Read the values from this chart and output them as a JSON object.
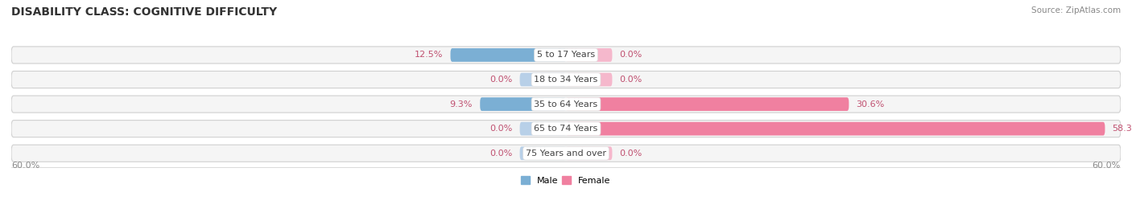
{
  "title": "DISABILITY CLASS: COGNITIVE DIFFICULTY",
  "source": "Source: ZipAtlas.com",
  "categories": [
    "5 to 17 Years",
    "18 to 34 Years",
    "35 to 64 Years",
    "65 to 74 Years",
    "75 Years and over"
  ],
  "male_values": [
    12.5,
    0.0,
    9.3,
    0.0,
    0.0
  ],
  "female_values": [
    0.0,
    0.0,
    30.6,
    58.3,
    0.0
  ],
  "max_val": 60.0,
  "male_color": "#7bafd4",
  "female_color": "#f080a0",
  "male_zero_color": "#b8d0e8",
  "female_zero_color": "#f5b8cc",
  "row_outer_color": "#e0e0e0",
  "row_inner_color": "#f5f5f5",
  "value_color": "#c05070",
  "label_color": "#444444",
  "title_fontsize": 10,
  "label_fontsize": 8,
  "value_fontsize": 8,
  "tick_fontsize": 8,
  "source_fontsize": 7.5,
  "zero_bar_width": 5.0,
  "legend_male_color": "#7bafd4",
  "legend_female_color": "#f080a0"
}
